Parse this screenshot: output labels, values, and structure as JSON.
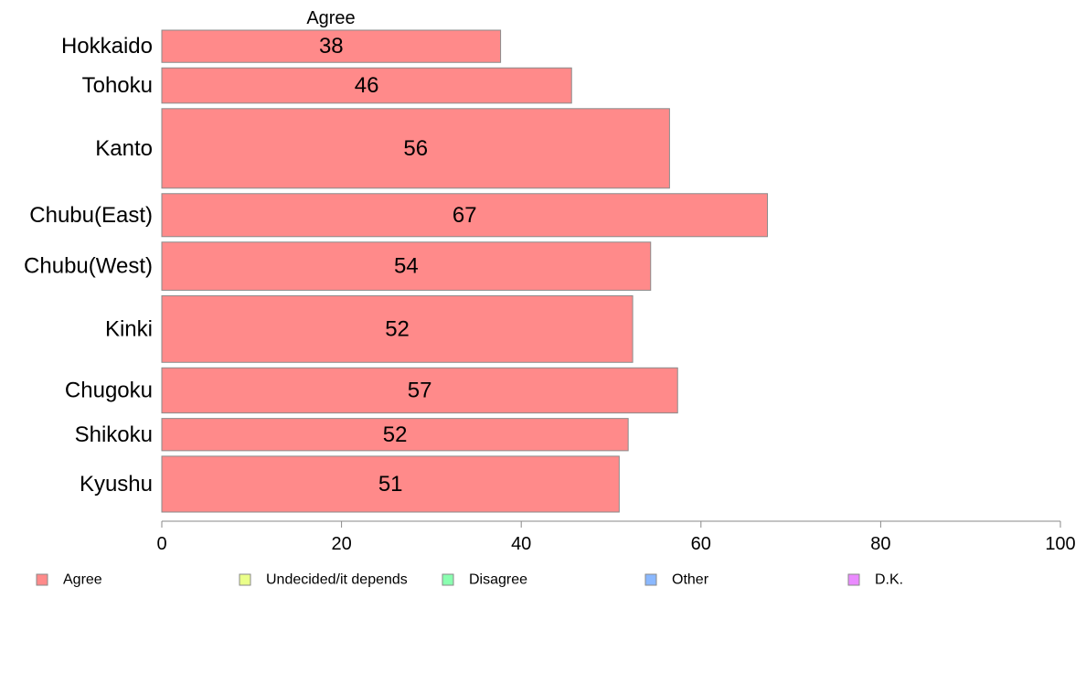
{
  "chart_data": {
    "type": "bar",
    "orientation": "horizontal",
    "top_label": "Agree",
    "categories": [
      "Hokkaido",
      "Tohoku",
      "Kanto",
      "Chubu(East)",
      "Chubu(West)",
      "Kinki",
      "Chugoku",
      "Shikoku",
      "Kyushu"
    ],
    "series": [
      {
        "name": "Agree",
        "color": "#ff8a8a",
        "values": [
          37.7,
          45.6,
          56.5,
          67.4,
          54.4,
          52.4,
          57.4,
          51.9,
          50.9
        ],
        "labels": [
          "38",
          "46",
          "56",
          "67",
          "54",
          "52",
          "57",
          "52",
          "51"
        ]
      }
    ],
    "bar_relative_widths": [
      0.75,
      0.82,
      1.85,
      1.0,
      1.12,
      1.55,
      1.05,
      0.75,
      1.3
    ],
    "xlim": [
      0,
      100
    ],
    "xticks": [
      0,
      20,
      40,
      60,
      80,
      100
    ],
    "grid": false,
    "legend": {
      "position": "bottom",
      "items": [
        {
          "label": "Agree",
          "color": "#ff8a8a"
        },
        {
          "label": "Undecided/it depends",
          "color": "#eaff8a"
        },
        {
          "label": "Disagree",
          "color": "#8affb0"
        },
        {
          "label": "Other",
          "color": "#8ab8ff"
        },
        {
          "label": "D.K.",
          "color": "#ea8aff"
        }
      ]
    }
  }
}
